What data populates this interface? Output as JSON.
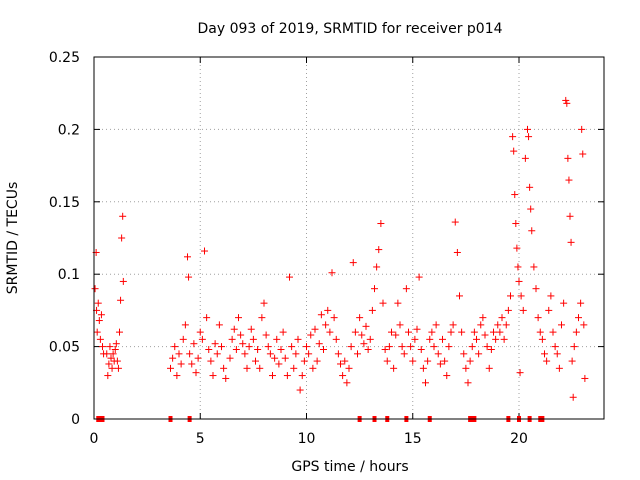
{
  "chart_data": {
    "type": "scatter",
    "title": "Day 093 of 2019, SRMTID for receiver p014",
    "xlabel": "GPS time / hours",
    "ylabel": "SRMTID / TECUs",
    "xlim": [
      0,
      24
    ],
    "ylim": [
      0,
      0.25
    ],
    "x_ticks": [
      0,
      5,
      10,
      15,
      20
    ],
    "x_tick_labels": [
      "0",
      "5",
      "10",
      "15",
      "20"
    ],
    "y_ticks": [
      0,
      0.05,
      0.1,
      0.15,
      0.2,
      0.25
    ],
    "y_tick_labels": [
      "0",
      "0.05",
      "0.1",
      "0.15",
      "0.2",
      "0.25"
    ],
    "grid": true,
    "marker": "+",
    "series_color": "#ff0000",
    "series": [
      {
        "name": "SRMTID",
        "points": [
          [
            0.05,
            0.09
          ],
          [
            0.1,
            0.115
          ],
          [
            0.12,
            0.075
          ],
          [
            0.15,
            0.06
          ],
          [
            0.2,
            0.08
          ],
          [
            0.25,
            0.068
          ],
          [
            0.3,
            0.055
          ],
          [
            0.35,
            0.072
          ],
          [
            0.4,
            0.05
          ],
          [
            0.45,
            0.045
          ],
          [
            0.6,
            0.045
          ],
          [
            0.65,
            0.03
          ],
          [
            0.7,
            0.038
          ],
          [
            0.75,
            0.05
          ],
          [
            0.8,
            0.042
          ],
          [
            0.85,
            0.035
          ],
          [
            0.9,
            0.045
          ],
          [
            0.95,
            0.04
          ],
          [
            1.0,
            0.048
          ],
          [
            1.05,
            0.052
          ],
          [
            1.1,
            0.04
          ],
          [
            1.15,
            0.035
          ],
          [
            1.2,
            0.06
          ],
          [
            1.25,
            0.082
          ],
          [
            1.3,
            0.125
          ],
          [
            1.35,
            0.14
          ],
          [
            1.38,
            0.095
          ],
          [
            3.6,
            0.035
          ],
          [
            3.7,
            0.042
          ],
          [
            3.8,
            0.05
          ],
          [
            3.9,
            0.03
          ],
          [
            4.0,
            0.045
          ],
          [
            4.1,
            0.038
          ],
          [
            4.2,
            0.055
          ],
          [
            4.3,
            0.065
          ],
          [
            4.4,
            0.112
          ],
          [
            4.45,
            0.098
          ],
          [
            4.5,
            0.045
          ],
          [
            4.6,
            0.038
          ],
          [
            4.7,
            0.052
          ],
          [
            4.8,
            0.032
          ],
          [
            4.9,
            0.042
          ],
          [
            5.0,
            0.06
          ],
          [
            5.1,
            0.055
          ],
          [
            5.2,
            0.116
          ],
          [
            5.3,
            0.07
          ],
          [
            5.4,
            0.048
          ],
          [
            5.5,
            0.04
          ],
          [
            5.6,
            0.03
          ],
          [
            5.7,
            0.052
          ],
          [
            5.8,
            0.045
          ],
          [
            5.9,
            0.065
          ],
          [
            6.0,
            0.05
          ],
          [
            6.1,
            0.035
          ],
          [
            6.2,
            0.028
          ],
          [
            6.4,
            0.042
          ],
          [
            6.5,
            0.055
          ],
          [
            6.6,
            0.062
          ],
          [
            6.7,
            0.048
          ],
          [
            6.8,
            0.07
          ],
          [
            6.9,
            0.058
          ],
          [
            7.0,
            0.052
          ],
          [
            7.1,
            0.045
          ],
          [
            7.2,
            0.035
          ],
          [
            7.3,
            0.05
          ],
          [
            7.4,
            0.062
          ],
          [
            7.5,
            0.055
          ],
          [
            7.6,
            0.04
          ],
          [
            7.7,
            0.048
          ],
          [
            7.8,
            0.035
          ],
          [
            7.9,
            0.07
          ],
          [
            8.0,
            0.08
          ],
          [
            8.1,
            0.058
          ],
          [
            8.2,
            0.05
          ],
          [
            8.3,
            0.045
          ],
          [
            8.4,
            0.03
          ],
          [
            8.5,
            0.042
          ],
          [
            8.6,
            0.055
          ],
          [
            8.7,
            0.038
          ],
          [
            8.8,
            0.048
          ],
          [
            8.9,
            0.06
          ],
          [
            9.0,
            0.042
          ],
          [
            9.1,
            0.03
          ],
          [
            9.2,
            0.098
          ],
          [
            9.3,
            0.05
          ],
          [
            9.4,
            0.035
          ],
          [
            9.5,
            0.045
          ],
          [
            9.6,
            0.055
          ],
          [
            9.7,
            0.02
          ],
          [
            9.8,
            0.03
          ],
          [
            9.9,
            0.04
          ],
          [
            10.0,
            0.05
          ],
          [
            10.1,
            0.045
          ],
          [
            10.2,
            0.058
          ],
          [
            10.3,
            0.035
          ],
          [
            10.4,
            0.062
          ],
          [
            10.5,
            0.04
          ],
          [
            10.6,
            0.052
          ],
          [
            10.7,
            0.072
          ],
          [
            10.8,
            0.048
          ],
          [
            10.9,
            0.065
          ],
          [
            11.0,
            0.075
          ],
          [
            11.1,
            0.06
          ],
          [
            11.2,
            0.101
          ],
          [
            11.3,
            0.07
          ],
          [
            11.4,
            0.055
          ],
          [
            11.5,
            0.045
          ],
          [
            11.6,
            0.038
          ],
          [
            11.7,
            0.03
          ],
          [
            11.8,
            0.04
          ],
          [
            11.9,
            0.025
          ],
          [
            12.0,
            0.035
          ],
          [
            12.1,
            0.05
          ],
          [
            12.2,
            0.108
          ],
          [
            12.3,
            0.06
          ],
          [
            12.4,
            0.045
          ],
          [
            12.5,
            0.07
          ],
          [
            12.6,
            0.058
          ],
          [
            12.7,
            0.052
          ],
          [
            12.8,
            0.064
          ],
          [
            12.9,
            0.048
          ],
          [
            13.0,
            0.055
          ],
          [
            13.1,
            0.075
          ],
          [
            13.2,
            0.09
          ],
          [
            13.3,
            0.105
          ],
          [
            13.4,
            0.117
          ],
          [
            13.5,
            0.135
          ],
          [
            13.6,
            0.08
          ],
          [
            13.7,
            0.048
          ],
          [
            13.8,
            0.04
          ],
          [
            13.9,
            0.05
          ],
          [
            14.0,
            0.06
          ],
          [
            14.1,
            0.035
          ],
          [
            14.2,
            0.058
          ],
          [
            14.3,
            0.08
          ],
          [
            14.4,
            0.065
          ],
          [
            14.5,
            0.05
          ],
          [
            14.6,
            0.045
          ],
          [
            14.7,
            0.09
          ],
          [
            14.8,
            0.06
          ],
          [
            14.9,
            0.05
          ],
          [
            15.0,
            0.04
          ],
          [
            15.1,
            0.055
          ],
          [
            15.2,
            0.062
          ],
          [
            15.3,
            0.098
          ],
          [
            15.4,
            0.048
          ],
          [
            15.5,
            0.035
          ],
          [
            15.6,
            0.025
          ],
          [
            15.7,
            0.04
          ],
          [
            15.8,
            0.055
          ],
          [
            15.9,
            0.06
          ],
          [
            16.0,
            0.05
          ],
          [
            16.1,
            0.065
          ],
          [
            16.2,
            0.045
          ],
          [
            16.3,
            0.038
          ],
          [
            16.4,
            0.055
          ],
          [
            16.5,
            0.04
          ],
          [
            16.6,
            0.03
          ],
          [
            16.7,
            0.05
          ],
          [
            16.8,
            0.06
          ],
          [
            16.9,
            0.065
          ],
          [
            17.0,
            0.136
          ],
          [
            17.1,
            0.115
          ],
          [
            17.2,
            0.085
          ],
          [
            17.3,
            0.06
          ],
          [
            17.4,
            0.045
          ],
          [
            17.5,
            0.035
          ],
          [
            17.6,
            0.025
          ],
          [
            17.7,
            0.04
          ],
          [
            17.8,
            0.05
          ],
          [
            17.9,
            0.06
          ],
          [
            18.0,
            0.055
          ],
          [
            18.1,
            0.045
          ],
          [
            18.2,
            0.065
          ],
          [
            18.3,
            0.07
          ],
          [
            18.4,
            0.058
          ],
          [
            18.5,
            0.05
          ],
          [
            18.6,
            0.035
          ],
          [
            18.7,
            0.048
          ],
          [
            18.8,
            0.06
          ],
          [
            18.9,
            0.055
          ],
          [
            19.0,
            0.065
          ],
          [
            19.1,
            0.06
          ],
          [
            19.2,
            0.07
          ],
          [
            19.3,
            0.055
          ],
          [
            19.4,
            0.065
          ],
          [
            19.5,
            0.075
          ],
          [
            19.6,
            0.085
          ],
          [
            19.7,
            0.195
          ],
          [
            19.75,
            0.185
          ],
          [
            19.8,
            0.155
          ],
          [
            19.85,
            0.135
          ],
          [
            19.9,
            0.118
          ],
          [
            19.95,
            0.105
          ],
          [
            20.0,
            0.095
          ],
          [
            20.05,
            0.032
          ],
          [
            20.1,
            0.085
          ],
          [
            20.2,
            0.075
          ],
          [
            20.3,
            0.18
          ],
          [
            20.4,
            0.2
          ],
          [
            20.45,
            0.195
          ],
          [
            20.5,
            0.16
          ],
          [
            20.55,
            0.145
          ],
          [
            20.6,
            0.13
          ],
          [
            20.7,
            0.105
          ],
          [
            20.8,
            0.09
          ],
          [
            20.9,
            0.07
          ],
          [
            21.0,
            0.06
          ],
          [
            21.1,
            0.055
          ],
          [
            21.2,
            0.045
          ],
          [
            21.3,
            0.04
          ],
          [
            21.4,
            0.075
          ],
          [
            21.5,
            0.085
          ],
          [
            21.6,
            0.06
          ],
          [
            21.7,
            0.05
          ],
          [
            21.8,
            0.045
          ],
          [
            21.9,
            0.035
          ],
          [
            22.0,
            0.065
          ],
          [
            22.1,
            0.08
          ],
          [
            22.2,
            0.22
          ],
          [
            22.25,
            0.218
          ],
          [
            22.3,
            0.18
          ],
          [
            22.35,
            0.165
          ],
          [
            22.4,
            0.14
          ],
          [
            22.45,
            0.122
          ],
          [
            22.5,
            0.04
          ],
          [
            22.55,
            0.015
          ],
          [
            22.6,
            0.05
          ],
          [
            22.7,
            0.06
          ],
          [
            22.8,
            0.07
          ],
          [
            22.9,
            0.08
          ],
          [
            22.95,
            0.2
          ],
          [
            23.0,
            0.183
          ],
          [
            23.05,
            0.065
          ],
          [
            23.1,
            0.028
          ]
        ]
      }
    ],
    "gap_markers_x": [
      0.2,
      0.3,
      0.4,
      3.6,
      4.5,
      12.5,
      13.2,
      13.8,
      14.7,
      15.8,
      17.7,
      17.8,
      17.9,
      19.5,
      20.0,
      20.5,
      21.0,
      21.1
    ]
  }
}
